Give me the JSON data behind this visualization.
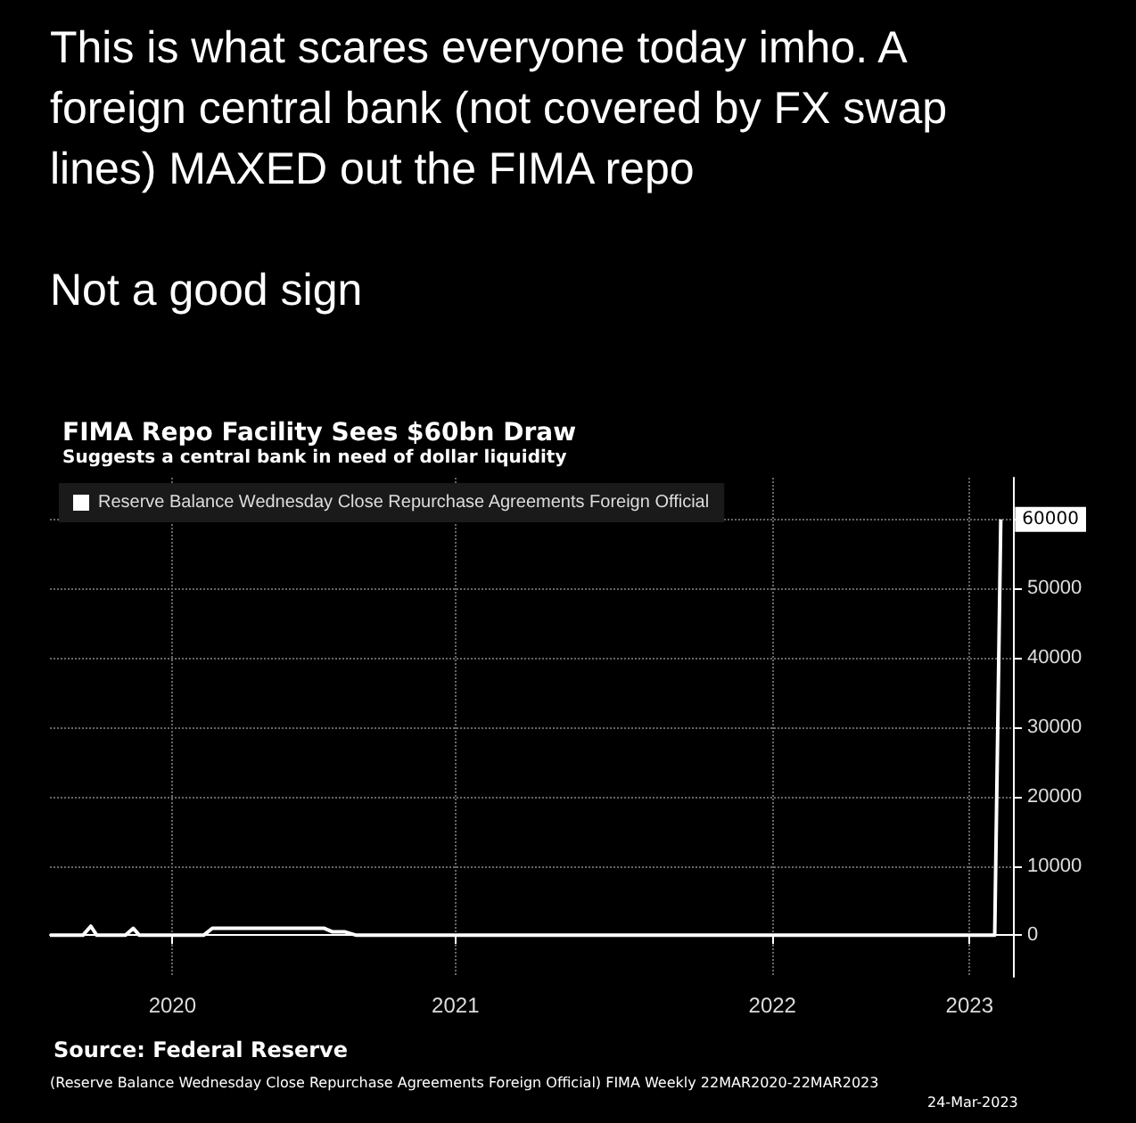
{
  "chart_data": {
    "type": "line",
    "title": "FIMA Repo Facility Sees $60bn Draw",
    "subtitle": "Suggests a central bank in need of dollar liquidity",
    "annotations": [
      "This is what scares everyone today imho. A foreign central bank (not covered by FX swap lines) MAXED out the FIMA repo",
      "Not a good sign",
      "Source: Federal Reserve",
      "(Reserve Balance Wednesday Close Repurchase Agreements Foreign Official) FIMA  Weekly 22MAR2020-22MAR2023",
      "24-Mar-2023"
    ],
    "x": [
      "2020-03-22",
      "2020-04-29",
      "2020-05-08",
      "2020-05-15",
      "2020-06-17",
      "2020-06-26",
      "2020-07-03",
      "2020-09-15",
      "2020-09-25",
      "2021-02-01",
      "2021-02-10",
      "2021-02-24",
      "2021-03-10",
      "2023-03-15",
      "2023-03-22"
    ],
    "series": [
      {
        "name": "Reserve Balance Wednesday Close Repurchase Agreements Foreign Official",
        "color": "#ffffff",
        "values": [
          0,
          0,
          1300,
          0,
          0,
          1000,
          0,
          0,
          1000,
          1000,
          500,
          500,
          0,
          0,
          60000
        ],
        "value_labels": [
          null,
          null,
          null,
          null,
          null,
          null,
          null,
          null,
          null,
          null,
          null,
          null,
          null,
          null,
          "60000"
        ]
      }
    ],
    "xlim": [
      "2020-03-22",
      "2023-04-05"
    ],
    "xticks": [
      {
        "value": "2020-08-10",
        "label": "2020"
      },
      {
        "value": "2021-07-02",
        "label": "2021"
      },
      {
        "value": "2022-07-02",
        "label": "2022"
      },
      {
        "value": "2023-02-14",
        "label": "2023"
      }
    ],
    "ylim": [
      -6000,
      66000
    ],
    "yticks": [
      0,
      10000,
      20000,
      30000,
      40000,
      50000,
      60000
    ],
    "grid": true,
    "legend": "top left",
    "marker": "none",
    "line_style": "solid"
  }
}
